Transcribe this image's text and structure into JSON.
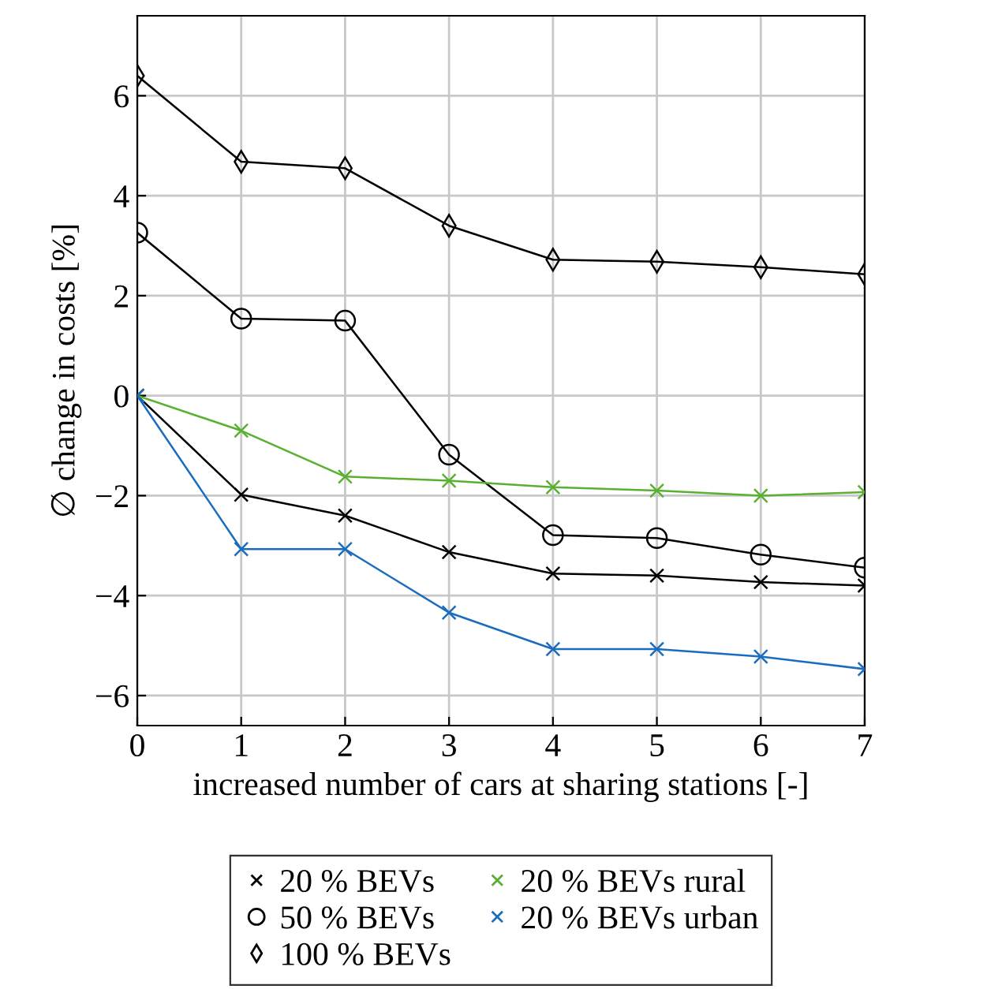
{
  "chart_data": {
    "type": "line",
    "xlabel": "increased number of cars at sharing stations [-]",
    "ylabel": "∅ change in costs [%]",
    "x": [
      0,
      1,
      2,
      3,
      4,
      5,
      6,
      7
    ],
    "series": [
      {
        "name": "20 % BEVs",
        "color": "#000000",
        "marker": "cross",
        "values": [
          0,
          -1.98,
          -2.4,
          -3.13,
          -3.56,
          -3.6,
          -3.73,
          -3.8
        ]
      },
      {
        "name": "50 % BEVs",
        "color": "#000000",
        "marker": "circle",
        "values": [
          3.26,
          1.54,
          1.5,
          -1.18,
          -2.79,
          -2.85,
          -3.18,
          -3.44
        ]
      },
      {
        "name": "100 % BEVs",
        "color": "#000000",
        "marker": "diamond",
        "values": [
          6.4,
          4.68,
          4.55,
          3.4,
          2.72,
          2.68,
          2.57,
          2.43
        ]
      },
      {
        "name": "20 % BEVs rural",
        "color": "#5ab030",
        "marker": "cross",
        "values": [
          0,
          -0.7,
          -1.62,
          -1.7,
          -1.83,
          -1.9,
          -2.0,
          -1.93
        ]
      },
      {
        "name": "20 % BEVs urban",
        "color": "#1a6cbf",
        "marker": "cross",
        "values": [
          0,
          -3.07,
          -3.07,
          -4.34,
          -5.07,
          -5.07,
          -5.22,
          -5.47
        ]
      }
    ],
    "xlim": [
      0,
      7
    ],
    "xticks": [
      0,
      1,
      2,
      3,
      4,
      5,
      6,
      7
    ],
    "ylim": [
      -6.6,
      7.6
    ],
    "yticks": [
      -6,
      -4,
      -2,
      0,
      2,
      4,
      6
    ],
    "grid": true,
    "legend": "bottom",
    "line_style": "solid"
  }
}
